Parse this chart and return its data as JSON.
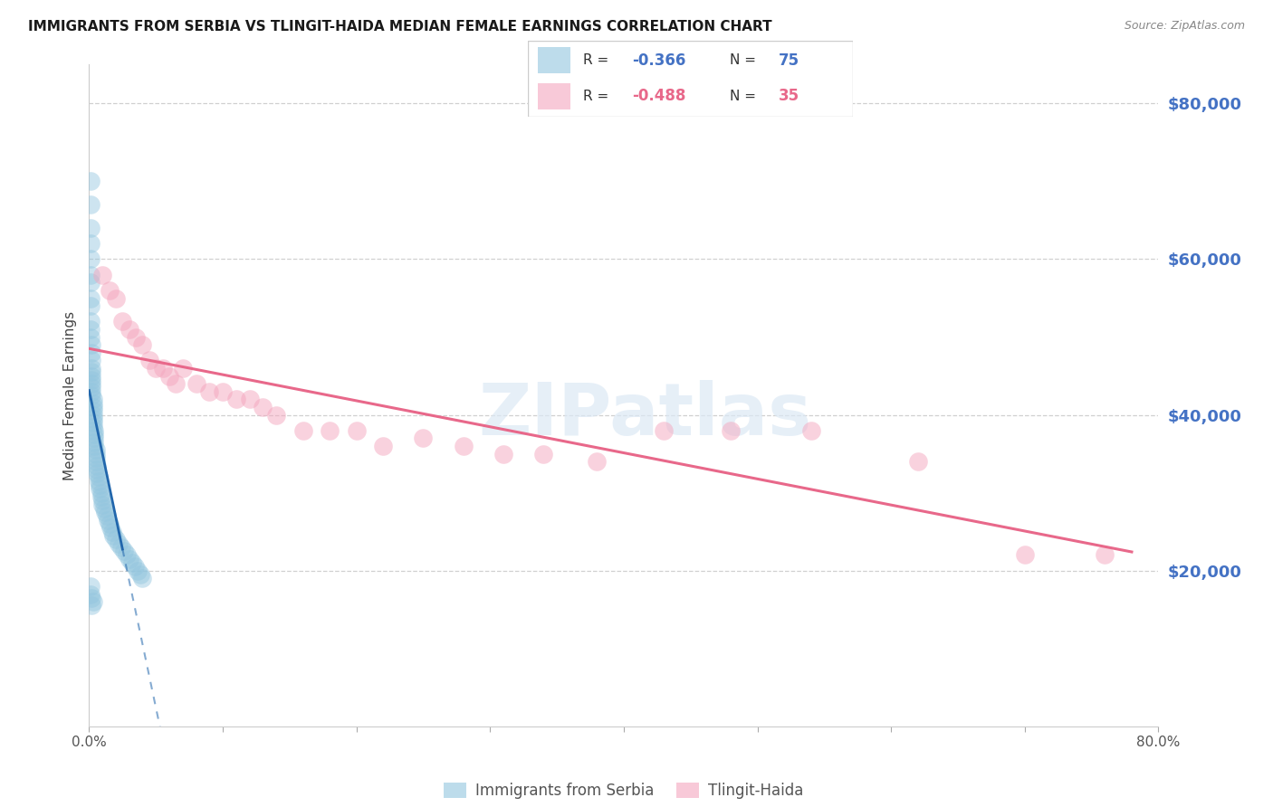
{
  "title": "IMMIGRANTS FROM SERBIA VS TLINGIT-HAIDA MEDIAN FEMALE EARNINGS CORRELATION CHART",
  "source": "Source: ZipAtlas.com",
  "ylabel": "Median Female Earnings",
  "watermark": "ZIPatlas",
  "legend1_label": "Immigrants from Serbia",
  "legend2_label": "Tlingit-Haida",
  "legend1_R": "R = -0.366",
  "legend1_N": "N = 75",
  "legend2_R": "R = -0.488",
  "legend2_N": "N = 35",
  "blue_color": "#92c5de",
  "pink_color": "#f4a6be",
  "blue_line_color": "#2166ac",
  "pink_line_color": "#e8688a",
  "ytick_labels": [
    "$20,000",
    "$40,000",
    "$60,000",
    "$80,000"
  ],
  "ytick_values": [
    20000,
    40000,
    60000,
    80000
  ],
  "xlim": [
    0.0,
    0.8
  ],
  "ylim": [
    0,
    85000
  ],
  "serbia_x": [
    0.001,
    0.001,
    0.001,
    0.001,
    0.001,
    0.001,
    0.001,
    0.001,
    0.001,
    0.001,
    0.001,
    0.001,
    0.002,
    0.002,
    0.002,
    0.002,
    0.002,
    0.002,
    0.002,
    0.002,
    0.002,
    0.002,
    0.002,
    0.003,
    0.003,
    0.003,
    0.003,
    0.003,
    0.003,
    0.003,
    0.003,
    0.004,
    0.004,
    0.004,
    0.004,
    0.004,
    0.005,
    0.005,
    0.005,
    0.005,
    0.006,
    0.006,
    0.006,
    0.007,
    0.007,
    0.008,
    0.008,
    0.009,
    0.009,
    0.01,
    0.01,
    0.011,
    0.012,
    0.013,
    0.014,
    0.015,
    0.016,
    0.017,
    0.018,
    0.02,
    0.022,
    0.024,
    0.026,
    0.028,
    0.03,
    0.032,
    0.034,
    0.036,
    0.038,
    0.04,
    0.001,
    0.001,
    0.002,
    0.003,
    0.002
  ],
  "serbia_y": [
    70000,
    67000,
    64000,
    62000,
    60000,
    58000,
    57000,
    55000,
    54000,
    52000,
    51000,
    50000,
    49000,
    48000,
    47000,
    46000,
    45500,
    45000,
    44500,
    44000,
    43500,
    43000,
    42500,
    42000,
    41500,
    41000,
    40500,
    40000,
    39500,
    39000,
    38500,
    38000,
    37500,
    37000,
    36500,
    36000,
    35500,
    35000,
    34500,
    34000,
    33500,
    33000,
    32500,
    32000,
    31500,
    31000,
    30500,
    30000,
    29500,
    29000,
    28500,
    28000,
    27500,
    27000,
    26500,
    26000,
    25500,
    25000,
    24500,
    24000,
    23500,
    23000,
    22500,
    22000,
    21500,
    21000,
    20500,
    20000,
    19500,
    19000,
    18000,
    17000,
    16500,
    16000,
    15500
  ],
  "tlingit_x": [
    0.01,
    0.015,
    0.02,
    0.025,
    0.03,
    0.035,
    0.04,
    0.045,
    0.05,
    0.055,
    0.06,
    0.065,
    0.07,
    0.08,
    0.09,
    0.1,
    0.11,
    0.12,
    0.13,
    0.14,
    0.16,
    0.18,
    0.2,
    0.22,
    0.25,
    0.28,
    0.31,
    0.34,
    0.38,
    0.43,
    0.48,
    0.54,
    0.62,
    0.7,
    0.76
  ],
  "tlingit_y": [
    58000,
    56000,
    55000,
    52000,
    51000,
    50000,
    49000,
    47000,
    46000,
    46000,
    45000,
    44000,
    46000,
    44000,
    43000,
    43000,
    42000,
    42000,
    41000,
    40000,
    38000,
    38000,
    38000,
    36000,
    37000,
    36000,
    35000,
    35000,
    34000,
    38000,
    38000,
    38000,
    34000,
    22000,
    22000
  ]
}
